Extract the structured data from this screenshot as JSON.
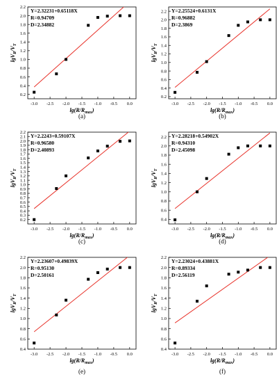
{
  "colors": {
    "fit_line": "#e8322a",
    "points": "#000000",
    "axis": "#000000"
  },
  "chart_data": [
    {
      "type": "scatter",
      "panel_label": "(a)",
      "equation": "Y=2.32231+0.65118X",
      "r": "R=0.94709",
      "d": "D=2.34882",
      "xlabel": "lg(R/Rmax)",
      "ylabel": "lgVR/VT",
      "xlim": [
        -3.2,
        0.2
      ],
      "ylim": [
        0.1,
        2.2
      ],
      "xticks": [
        -3.0,
        -2.5,
        -2.0,
        -1.5,
        -1.0,
        -0.5,
        0.0
      ],
      "xtick_labels": [
        "-3.0",
        "-2.5",
        "-2.0",
        "-1.5",
        "-1.0",
        "-0.5",
        "0.0"
      ],
      "yticks": [
        0.2,
        0.4,
        0.6,
        0.8,
        1.0,
        1.2,
        1.4,
        1.6,
        1.8,
        2.0,
        2.2
      ],
      "ytick_labels": [
        "0.2",
        "0.4",
        "0.6",
        "0.8",
        "1.0",
        "1.2",
        "1.4",
        "1.6",
        "1.8",
        "2.0",
        "2.2"
      ],
      "fit": {
        "intercept": 2.32231,
        "slope": 0.65118
      },
      "x": [
        -3.0,
        -2.3,
        -2.0,
        -1.3,
        -1.0,
        -0.7,
        -0.3,
        0.0
      ],
      "y": [
        0.25,
        0.67,
        1.0,
        1.78,
        1.96,
        1.99,
        2.0,
        2.0
      ]
    },
    {
      "type": "scatter",
      "panel_label": "(b)",
      "equation": "Y=2.25524+0.6131X",
      "r": "R=0.96882",
      "d": "D=2.3869",
      "xlabel": "lg(R/Rmax)",
      "ylabel": "lgVR/VT",
      "xlim": [
        -3.2,
        0.2
      ],
      "ylim": [
        0.15,
        2.3
      ],
      "xticks": [
        -3.0,
        -2.5,
        -2.0,
        -1.5,
        -1.0,
        -0.5,
        0.0
      ],
      "xtick_labels": [
        "-3.0",
        "-2.5",
        "-2.0",
        "-1.5",
        "-1.0",
        "-0.5",
        "0.0"
      ],
      "yticks": [
        0.2,
        0.4,
        0.6,
        0.8,
        1.0,
        1.2,
        1.4,
        1.6,
        1.8,
        2.0,
        2.2
      ],
      "ytick_labels": [
        "0.2",
        "0.4",
        "0.6",
        "0.8",
        "1.0",
        "1.2",
        "1.4",
        "1.6",
        "1.8",
        "2.0",
        "2.2"
      ],
      "fit": {
        "intercept": 2.25524,
        "slope": 0.6131
      },
      "x": [
        -3.0,
        -2.3,
        -2.0,
        -1.3,
        -1.0,
        -0.7,
        -0.3,
        0.0
      ],
      "y": [
        0.3,
        0.77,
        1.02,
        1.63,
        1.87,
        1.95,
        2.0,
        2.0
      ]
    },
    {
      "type": "scatter",
      "panel_label": "(c)",
      "equation": "Y=2.2243+0.59107X",
      "r": "R=0.96580",
      "d": "D=2.40893",
      "xlabel": "lg(R/Rmax)",
      "ylabel": "lgVR/VT",
      "xlim": [
        -3.2,
        0.2
      ],
      "ylim": [
        0.1,
        2.2
      ],
      "xticks": [
        -3.0,
        -2.5,
        -2.0,
        -1.5,
        -1.0,
        -0.5,
        0.0
      ],
      "xtick_labels": [
        "-3.0",
        "-2.5",
        "-2.0",
        "-1.5",
        "-1.0",
        "-0.5",
        "0.0"
      ],
      "yticks": [
        0.2,
        0.3,
        0.4,
        0.5,
        0.6,
        0.7,
        0.8,
        0.9,
        1.0,
        1.1,
        1.2,
        1.3,
        1.4,
        1.5,
        1.6,
        1.7,
        1.8,
        1.9,
        2.0,
        2.1,
        2.2
      ],
      "ytick_labels": [
        "0.2",
        "0.3",
        "0.4",
        "0.5",
        "0.6",
        "0.7",
        "0.8",
        "0.9",
        "1.0",
        "1.1",
        "1.2",
        "1.3",
        "1.4",
        "1.5",
        "1.6",
        "1.7",
        "1.8",
        "1.9",
        "2.0",
        "2.1",
        "2.2"
      ],
      "fit": {
        "intercept": 2.2243,
        "slope": 0.59107
      },
      "x": [
        -3.0,
        -2.3,
        -2.0,
        -1.3,
        -1.0,
        -0.7,
        -0.3,
        0.0
      ],
      "y": [
        0.2,
        0.91,
        1.2,
        1.61,
        1.77,
        1.88,
        1.99,
        2.0
      ]
    },
    {
      "type": "scatter",
      "panel_label": "(d)",
      "equation": "Y=2.28218+0.54902X",
      "r": "R=0.94310",
      "d": "D=2.45098",
      "xlabel": "lg(R/Rmax)",
      "ylabel": "lgVR/VT",
      "xlim": [
        -3.2,
        0.2
      ],
      "ylim": [
        0.3,
        2.3
      ],
      "xticks": [
        -3.0,
        -2.5,
        -2.0,
        -1.5,
        -1.0,
        -0.5,
        0.0
      ],
      "xtick_labels": [
        "-3.0",
        "-2.5",
        "-2.0",
        "-1.5",
        "-1.0",
        "-0.5",
        "0.0"
      ],
      "yticks": [
        0.4,
        0.6,
        0.8,
        1.0,
        1.2,
        1.4,
        1.6,
        1.8,
        2.0,
        2.2
      ],
      "ytick_labels": [
        "0.4",
        "0.6",
        "0.8",
        "1.0",
        "1.2",
        "1.4",
        "1.6",
        "1.8",
        "2.0",
        "2.2"
      ],
      "fit": {
        "intercept": 2.28218,
        "slope": 0.54902
      },
      "x": [
        -3.0,
        -2.3,
        -2.0,
        -1.3,
        -1.0,
        -0.7,
        -0.3,
        0.0
      ],
      "y": [
        0.39,
        1.0,
        1.29,
        1.82,
        1.96,
        2.0,
        2.0,
        2.0
      ]
    },
    {
      "type": "scatter",
      "panel_label": "(e)",
      "equation": "Y=2.23607+0.49839X",
      "r": "R=0.95130",
      "d": "D=2.50161",
      "xlabel": "lg(R/Rmax)",
      "ylabel": "lgVR/VT",
      "xlim": [
        -3.2,
        0.2
      ],
      "ylim": [
        0.4,
        2.2
      ],
      "xticks": [
        -3.0,
        -2.5,
        -2.0,
        -1.5,
        -1.0,
        -0.5,
        0.0
      ],
      "xtick_labels": [
        "-3.0",
        "-2.5",
        "-2.0",
        "-1.5",
        "-1.0",
        "-0.5",
        "0.0"
      ],
      "yticks": [
        0.4,
        0.6,
        0.8,
        1.0,
        1.2,
        1.4,
        1.6,
        1.8,
        2.0,
        2.2
      ],
      "ytick_labels": [
        "0.4",
        "0.6",
        "0.8",
        "1.0",
        "1.2",
        "1.4",
        "1.6",
        "1.8",
        "2.0",
        "2.2"
      ],
      "fit": {
        "intercept": 2.23607,
        "slope": 0.49839
      },
      "x": [
        -3.0,
        -2.3,
        -2.0,
        -1.3,
        -1.0,
        -0.7,
        -0.3,
        0.0
      ],
      "y": [
        0.52,
        1.07,
        1.36,
        1.77,
        1.9,
        1.97,
        2.0,
        2.0
      ]
    },
    {
      "type": "scatter",
      "panel_label": "(f)",
      "equation": "Y=2.23024+0.43881X",
      "r": "R=0.89334",
      "d": "D=2.56119",
      "xlabel": "lg(R/Rmax)",
      "ylabel": "lgVR/VT",
      "xlim": [
        -3.2,
        0.2
      ],
      "ylim": [
        0.4,
        2.2
      ],
      "xticks": [
        -3.0,
        -2.5,
        -2.0,
        -1.5,
        -1.0,
        -0.5,
        0.0
      ],
      "xtick_labels": [
        "-3.0",
        "-2.5",
        "-2.0",
        "-1.5",
        "-1.0",
        "-0.5",
        "0.0"
      ],
      "yticks": [
        0.4,
        0.6,
        0.8,
        1.0,
        1.2,
        1.4,
        1.6,
        1.8,
        2.0,
        2.2
      ],
      "ytick_labels": [
        "0.4",
        "0.6",
        "0.8",
        "1.0",
        "1.2",
        "1.4",
        "1.6",
        "1.8",
        "2.0",
        "2.2"
      ],
      "fit": {
        "intercept": 2.23024,
        "slope": 0.43881
      },
      "x": [
        -3.0,
        -2.3,
        -2.0,
        -1.3,
        -1.0,
        -0.7,
        -0.3,
        0.0
      ],
      "y": [
        0.52,
        1.34,
        1.64,
        1.87,
        1.91,
        1.95,
        2.0,
        2.0
      ]
    }
  ]
}
